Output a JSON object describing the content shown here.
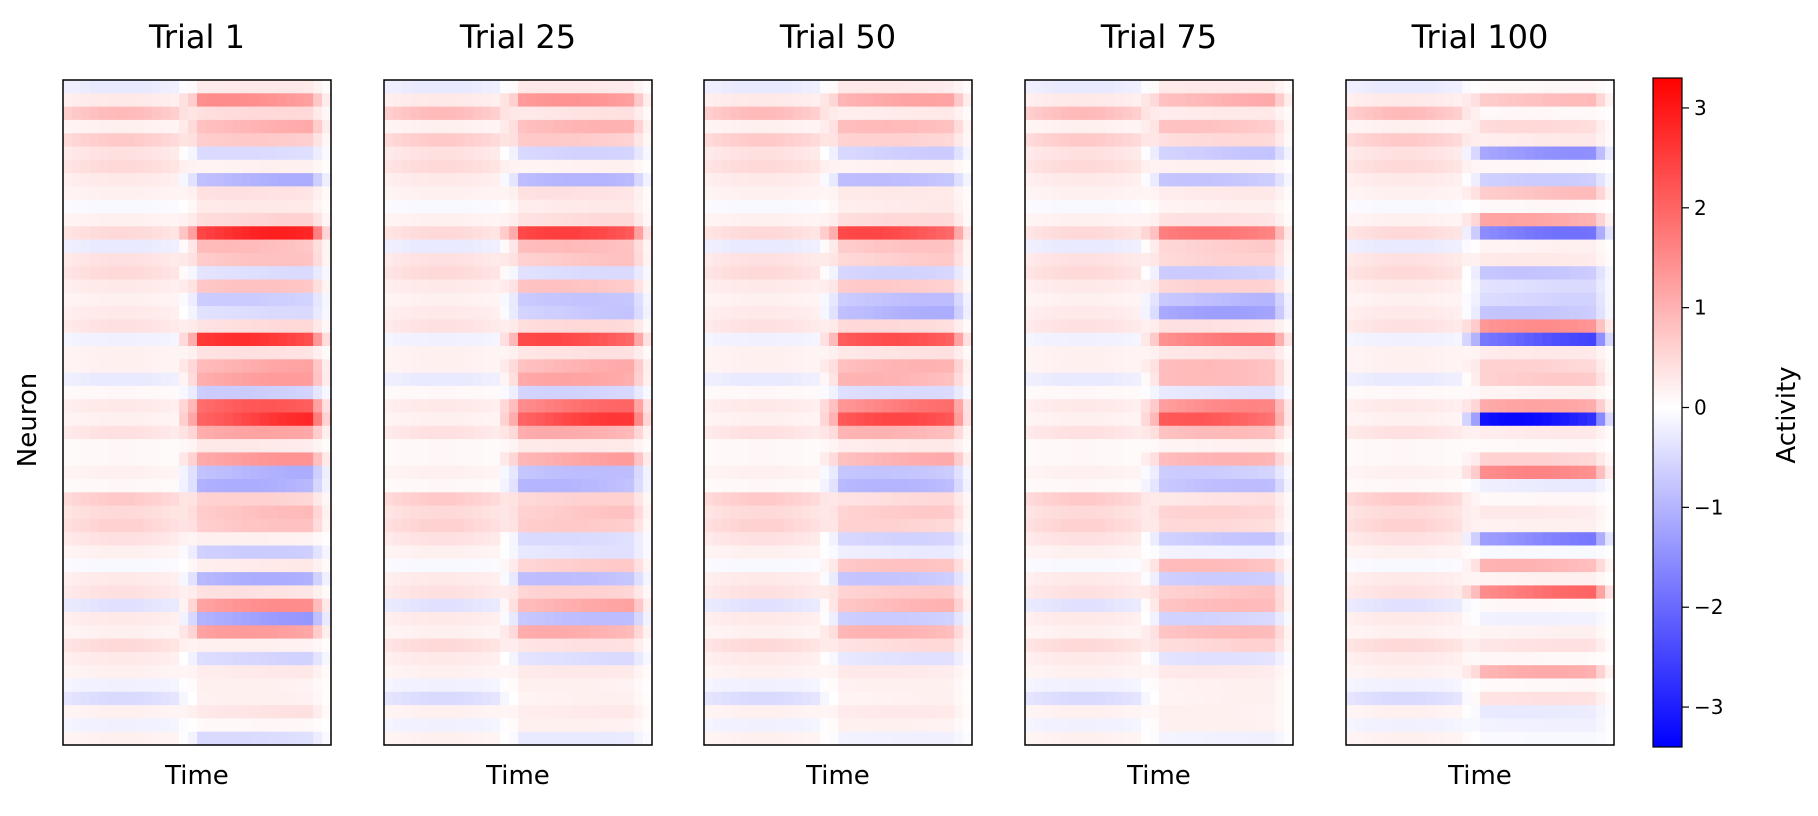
{
  "chart_data": {
    "type": "heatmap",
    "panel_titles": [
      "Trial 1",
      "Trial 25",
      "Trial 50",
      "Trial 75",
      "Trial 100"
    ],
    "xlabel": "Time",
    "ylabel": "Neuron",
    "colorbar": {
      "label": "Activity",
      "range": [
        -3.4,
        3.3
      ],
      "ticks": [
        3,
        2,
        1,
        0,
        -1,
        -2,
        -3
      ],
      "tick_labels": [
        "3",
        "2",
        "1",
        "0",
        "−1",
        "−2",
        "−3"
      ],
      "colormap": "bwr",
      "colors": {
        "low": "#0000ff",
        "mid": "#ffffff",
        "high": "#ff0000"
      }
    },
    "n_neurons": 50,
    "n_timebins": 30,
    "description_of_values": "Each panel: rows are neurons, columns are time bins. Early time (first ~half) carries a baseline response; late time (second half) carries a trial-dependent response that becomes sparser and more extreme by Trial 100.",
    "baseline_response": [
      -0.3,
      0.3,
      0.9,
      0.2,
      0.7,
      0.4,
      0.5,
      0.3,
      0.2,
      -0.1,
      0.2,
      0.5,
      -0.3,
      0.4,
      0.5,
      0.3,
      0.2,
      0.3,
      0.4,
      -0.2,
      0.2,
      0.2,
      -0.3,
      0.1,
      0.3,
      0.2,
      0.4,
      0.1,
      0.1,
      0.2,
      0.1,
      0.7,
      0.5,
      0.6,
      0.4,
      0.2,
      -0.1,
      0.3,
      0.4,
      -0.4,
      0.3,
      0.2,
      0.5,
      0.3,
      0.2,
      -0.2,
      -0.5,
      0.2,
      -0.2,
      0.2
    ],
    "late_response": {
      "Trial 1": [
        0.3,
        1.5,
        0.5,
        1.1,
        0.7,
        -0.5,
        0.2,
        -1.1,
        0.4,
        0.3,
        0.6,
        2.9,
        0.9,
        0.8,
        -0.5,
        0.8,
        -0.7,
        -0.5,
        0.5,
        2.7,
        0.4,
        1.2,
        1.3,
        -0.7,
        2.2,
        2.8,
        1.2,
        0.3,
        1.4,
        -1.1,
        -1.1,
        0.6,
        0.9,
        0.8,
        0.2,
        -0.7,
        0.3,
        -1.1,
        0.4,
        1.5,
        -1.4,
        1.3,
        0.2,
        -0.6,
        0.3,
        0.2,
        0.2,
        0.4,
        0.1,
        -0.5
      ],
      "Trial 25": [
        0.3,
        1.4,
        0.4,
        1.0,
        0.7,
        -0.6,
        0.2,
        -1.0,
        0.4,
        0.3,
        0.5,
        2.5,
        0.9,
        0.8,
        -0.5,
        0.8,
        -0.8,
        -0.8,
        0.5,
        2.4,
        0.4,
        1.1,
        1.2,
        -0.6,
        2.0,
        2.6,
        1.1,
        0.3,
        1.3,
        -0.9,
        -1.0,
        0.6,
        0.8,
        0.7,
        -0.5,
        -0.4,
        0.7,
        -0.9,
        0.6,
        1.2,
        -0.9,
        1.1,
        0.4,
        -0.5,
        0.3,
        0.2,
        0.2,
        0.3,
        0.2,
        -0.3
      ],
      "Trial 50": [
        0.3,
        1.2,
        0.3,
        0.9,
        0.6,
        -0.7,
        0.2,
        -0.9,
        0.3,
        0.3,
        0.5,
        2.4,
        0.8,
        0.7,
        -0.6,
        0.7,
        -0.9,
        -1.1,
        0.5,
        2.3,
        0.4,
        1.0,
        1.0,
        -0.5,
        1.9,
        2.4,
        1.0,
        0.3,
        1.1,
        -0.8,
        -1.0,
        0.5,
        0.7,
        0.6,
        -0.6,
        -0.3,
        0.8,
        -0.8,
        0.7,
        1.0,
        -0.7,
        1.0,
        0.5,
        -0.4,
        0.3,
        0.2,
        0.2,
        0.3,
        0.2,
        -0.2
      ],
      "Trial 75": [
        0.3,
        1.1,
        0.3,
        0.8,
        0.5,
        -0.8,
        0.2,
        -0.8,
        0.3,
        0.2,
        0.4,
        1.8,
        0.7,
        0.6,
        -0.7,
        0.6,
        -1.0,
        -1.3,
        0.4,
        1.8,
        0.4,
        0.9,
        0.9,
        -0.4,
        1.6,
        2.2,
        0.9,
        0.2,
        1.0,
        -0.7,
        -0.9,
        0.4,
        0.6,
        0.5,
        -0.8,
        -0.2,
        0.9,
        -0.7,
        0.8,
        0.9,
        -0.6,
        0.9,
        0.6,
        -0.4,
        0.3,
        0.2,
        0.2,
        0.2,
        0.2,
        -0.2
      ],
      "Trial 100": [
        0.1,
        0.9,
        0.1,
        0.5,
        0.3,
        -1.5,
        0.1,
        -0.7,
        0.9,
        0.1,
        1.2,
        -1.9,
        0.2,
        0.3,
        -0.8,
        -0.5,
        -0.6,
        -0.8,
        1.5,
        -2.5,
        0.3,
        0.6,
        0.7,
        0.2,
        1.2,
        -3.3,
        0.3,
        0.1,
        0.6,
        1.6,
        -0.3,
        0.1,
        0.3,
        0.2,
        -1.8,
        -0.1,
        1.0,
        0.2,
        2.0,
        0.1,
        -0.2,
        0.2,
        0.4,
        0.1,
        1.1,
        0.1,
        0.4,
        -0.3,
        -0.2,
        -0.1
      ]
    }
  }
}
